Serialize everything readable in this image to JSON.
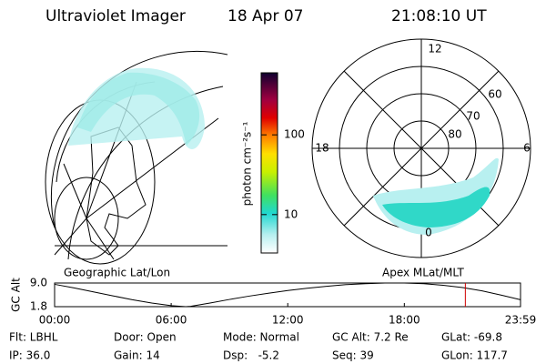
{
  "header": {
    "instrument": "Ultraviolet Imager",
    "date": "18 Apr 07",
    "time": "21:08:10 UT"
  },
  "colorbar": {
    "label": "photon cm⁻²s⁻¹",
    "scale": "log",
    "range": [
      3.3,
      600
    ],
    "ticks": [
      10,
      100
    ]
  },
  "polar_plot": {
    "mlt_labels": [
      "12",
      "18",
      "6",
      "0"
    ],
    "mlat_labels": [
      "60",
      "70",
      "80"
    ]
  },
  "chart_data": {
    "type": "line",
    "ylabel": "GC Alt",
    "left_label": "Geographic Lat/Lon",
    "right_label": "Apex MLat/MLT",
    "x": [
      0,
      1,
      2,
      3,
      4,
      5,
      6,
      6.75,
      7,
      8,
      9,
      10,
      11,
      12,
      13,
      14,
      15,
      16,
      17,
      18,
      19,
      20,
      21,
      22,
      23,
      23.98
    ],
    "series": [
      {
        "name": "GC Alt",
        "color": "#000000",
        "values": [
          8.6,
          7.5,
          6.3,
          5.1,
          3.9,
          2.9,
          2.1,
          1.8,
          1.9,
          2.9,
          4.0,
          5.0,
          5.9,
          6.7,
          7.4,
          8.0,
          8.5,
          8.8,
          9.0,
          9.0,
          8.8,
          8.3,
          7.6,
          6.6,
          5.3,
          3.9
        ]
      }
    ],
    "xlim": [
      0,
      23.98
    ],
    "xticks": [
      {
        "value": 0,
        "label": "00:00"
      },
      {
        "value": 6,
        "label": "06:00"
      },
      {
        "value": 12,
        "label": "12:00"
      },
      {
        "value": 18,
        "label": "18:00"
      },
      {
        "value": 23.98,
        "label": "23:59"
      }
    ],
    "ylim": [
      1.8,
      9.0
    ],
    "yticks": [
      {
        "value": 9.0,
        "label": "9.0"
      },
      1.8
    ],
    "marker_x": 21.14,
    "marker_color": "#d00000"
  },
  "footer": {
    "rows": [
      [
        "Flt: LBHL",
        "Door: Open",
        "Mode: Normal",
        "GC Alt: 7.2 Re",
        "GLat: -69.8"
      ],
      [
        "IP: 36.0",
        "Gain: 14",
        "Dsp:   -5.2",
        "Seq: 39",
        "GLon: 117.7"
      ]
    ]
  }
}
